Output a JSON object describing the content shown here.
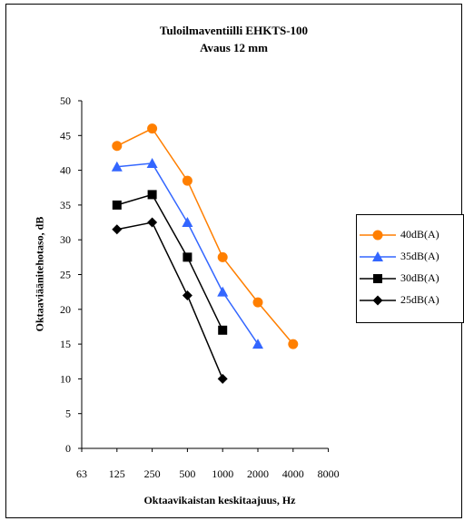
{
  "chart_data": {
    "type": "line",
    "title": [
      "Tuloilmaventiilli EHKTS-100",
      "Avaus 12 mm"
    ],
    "xlabel": "Oktaavikaistan keskitaajuus, Hz",
    "ylabel": "Oktaaviäänitehotaso, dB",
    "categories": [
      "63",
      "125",
      "250",
      "500",
      "1000",
      "2000",
      "4000",
      "8000"
    ],
    "yticks": [
      "0",
      "5",
      "10",
      "15",
      "20",
      "25",
      "30",
      "35",
      "40",
      "45",
      "50"
    ],
    "ylim": [
      0,
      50
    ],
    "grid": false,
    "legend_position": "right",
    "series": [
      {
        "name": "40dB(A)",
        "color": "#ff7f00",
        "marker": "circle",
        "values": [
          null,
          43.5,
          46,
          38.5,
          27.5,
          21,
          15,
          null
        ]
      },
      {
        "name": "35dB(A)",
        "color": "#3366ff",
        "marker": "triangle",
        "values": [
          null,
          40.5,
          41,
          32.5,
          22.5,
          15,
          null,
          null
        ]
      },
      {
        "name": "30dB(A)",
        "color": "#000000",
        "marker": "square",
        "values": [
          null,
          35,
          36.5,
          27.5,
          17,
          null,
          null,
          null
        ]
      },
      {
        "name": "25dB(A)",
        "color": "#000000",
        "marker": "diamond",
        "values": [
          null,
          31.5,
          32.5,
          22,
          10,
          null,
          null,
          null
        ]
      }
    ]
  }
}
